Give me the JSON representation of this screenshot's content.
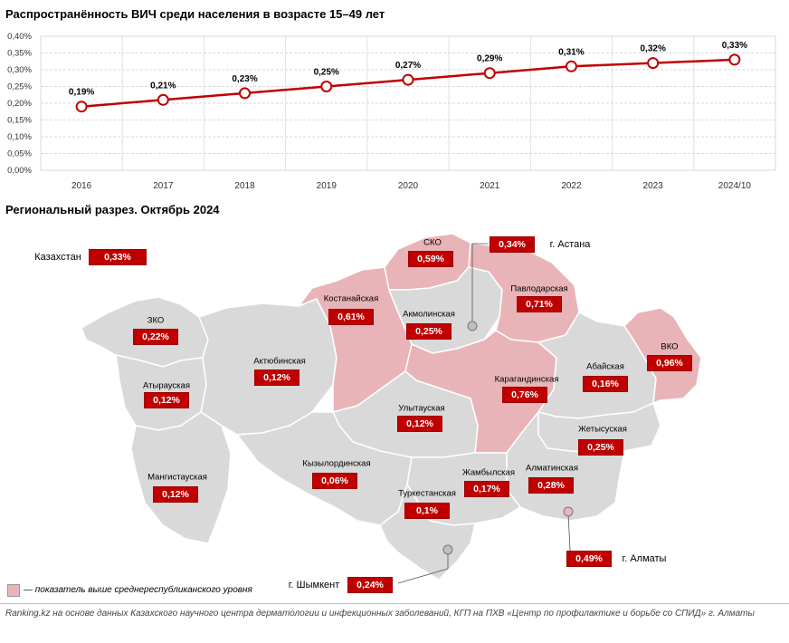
{
  "chart_title": "Распространённость ВИЧ среди населения в возрасте 15–49 лет",
  "map_title": "Региональный разрез. Октябрь 2024",
  "chart_data": {
    "type": "line",
    "title": "Распространённость ВИЧ среди населения в возрасте 15–49 лет",
    "categories": [
      "2016",
      "2017",
      "2018",
      "2019",
      "2020",
      "2021",
      "2022",
      "2023",
      "2024/10"
    ],
    "values": [
      0.19,
      0.21,
      0.23,
      0.25,
      0.27,
      0.29,
      0.31,
      0.32,
      0.33
    ],
    "data_labels": [
      "0,19%",
      "0,21%",
      "0,23%",
      "0,25%",
      "0,27%",
      "0,29%",
      "0,31%",
      "0,32%",
      "0,33%"
    ],
    "yticks": [
      "0,00%",
      "0,05%",
      "0,10%",
      "0,15%",
      "0,20%",
      "0,25%",
      "0,30%",
      "0,35%",
      "0,40%"
    ],
    "ylim": [
      0,
      0.4
    ],
    "grid": true,
    "line_color": "#c00000"
  },
  "regions": [
    {
      "name": "Казахстан",
      "value": "0,33%",
      "highlight": false
    },
    {
      "name": "СКО",
      "value": "0,59%",
      "highlight": true
    },
    {
      "name": "г. Астана",
      "value": "0,34%",
      "highlight": true
    },
    {
      "name": "Костанайская",
      "value": "0,61%",
      "highlight": true
    },
    {
      "name": "Акмолинская",
      "value": "0,25%",
      "highlight": false
    },
    {
      "name": "Павлодарская",
      "value": "0,71%",
      "highlight": true
    },
    {
      "name": "ЗКО",
      "value": "0,22%",
      "highlight": false
    },
    {
      "name": "ВКО",
      "value": "0,96%",
      "highlight": true
    },
    {
      "name": "Актюбинская",
      "value": "0,12%",
      "highlight": false
    },
    {
      "name": "Атырауская",
      "value": "0,12%",
      "highlight": false
    },
    {
      "name": "Карагандинская",
      "value": "0,76%",
      "highlight": true
    },
    {
      "name": "Абайская",
      "value": "0,16%",
      "highlight": false
    },
    {
      "name": "Улытауская",
      "value": "0,12%",
      "highlight": false
    },
    {
      "name": "Жетысуская",
      "value": "0,25%",
      "highlight": false
    },
    {
      "name": "Мангистауская",
      "value": "0,12%",
      "highlight": false
    },
    {
      "name": "Кызылординская",
      "value": "0,06%",
      "highlight": false
    },
    {
      "name": "Жамбылская",
      "value": "0,17%",
      "highlight": false
    },
    {
      "name": "Алматинская",
      "value": "0,28%",
      "highlight": false
    },
    {
      "name": "Туркестанская",
      "value": "0,1%",
      "highlight": false
    },
    {
      "name": "г. Алматы",
      "value": "0,49%",
      "highlight": true
    },
    {
      "name": "г. Шымкент",
      "value": "0,24%",
      "highlight": false
    }
  ],
  "legend_text": "— показатель выше среднереспубликанского уровня",
  "source": "Ranking.kz на основе данных Казахского научного центра дерматологии и инфекционных заболеваний, КГП на ПХВ «Центр по профилактике и борьбе со СПИД» г. Алматы",
  "colors": {
    "highlight": "#e8b4b8",
    "region": "#d9d9d9",
    "badge": "#c00000"
  }
}
